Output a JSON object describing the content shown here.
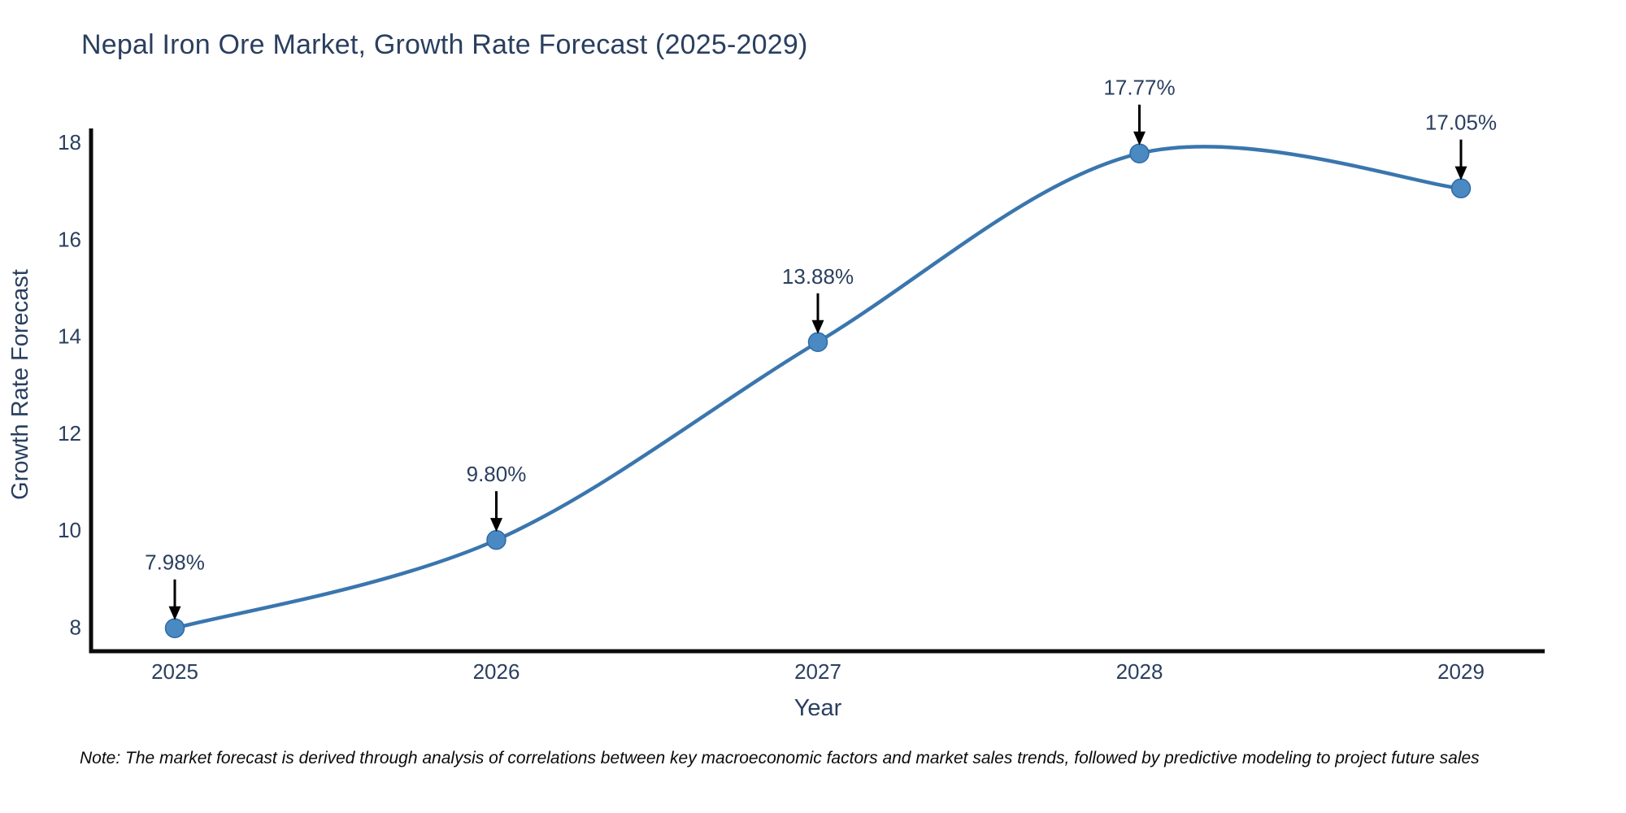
{
  "title": "Nepal Iron Ore Market, Growth Rate Forecast (2025-2029)",
  "note": "Note: The market forecast is derived through analysis of correlations between key macroeconomic factors and market sales trends, followed by predictive modeling to project future sales",
  "colors": {
    "line": "#3a76ae",
    "marker_fill": "#4a89c1",
    "marker_stroke": "#2f6ba6",
    "axis_line": "#0b0b0b",
    "tick_text": "#2a3f5f",
    "axis_title_text": "#2a3f5f",
    "annotation_text": "#2a3f5f",
    "arrow": "#000000",
    "title_text": "#2a3f5f",
    "background": "#ffffff"
  },
  "chart_data": {
    "type": "line",
    "title": "Nepal Iron Ore Market, Growth Rate Forecast (2025-2029)",
    "x": [
      "2025",
      "2026",
      "2027",
      "2028",
      "2029"
    ],
    "values": [
      7.98,
      9.8,
      13.88,
      17.77,
      17.05
    ],
    "point_labels": [
      "7.98%",
      "9.80%",
      "13.88%",
      "17.77%",
      "17.05%"
    ],
    "xlabel": "Year",
    "ylabel": "Growth Rate Forecast",
    "yticks": [
      8,
      10,
      12,
      14,
      16,
      18
    ],
    "ylim": [
      7.5,
      18.3
    ],
    "line_shape": "spline",
    "markers": true,
    "grid": false,
    "legend": "none",
    "annotation_style": "value label above point with black down-arrow"
  }
}
